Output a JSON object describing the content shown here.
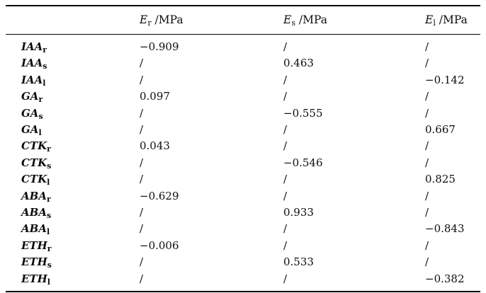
{
  "colors": {
    "background": "#ffffff",
    "text": "#0d0d0d",
    "rule": "#000000"
  },
  "table": {
    "header": {
      "row_label_col": "",
      "cols": [
        {
          "symbol": "E",
          "sub": "r",
          "unit": " /MPa"
        },
        {
          "symbol": "E",
          "sub": "s",
          "unit": " /MPa"
        },
        {
          "symbol": "E",
          "sub": "l",
          "unit": " /MPa"
        }
      ]
    },
    "empty_cell_marker": "/",
    "rows": [
      {
        "hormone": "IAA",
        "sub": "r",
        "er": "−0.909",
        "es": "/",
        "el": "/"
      },
      {
        "hormone": "IAA",
        "sub": "s",
        "er": "/",
        "es": "0.463",
        "el": "/"
      },
      {
        "hormone": "IAA",
        "sub": "l",
        "er": "/",
        "es": "/",
        "el": "−0.142"
      },
      {
        "hormone": "GA",
        "sub": "r",
        "er": "0.097",
        "es": "/",
        "el": "/"
      },
      {
        "hormone": "GA",
        "sub": "s",
        "er": "/",
        "es": "−0.555",
        "el": "/"
      },
      {
        "hormone": "GA",
        "sub": "l",
        "er": "/",
        "es": "/",
        "el": "0.667"
      },
      {
        "hormone": "CTK",
        "sub": "r",
        "er": "0.043",
        "es": "/",
        "el": "/"
      },
      {
        "hormone": "CTK",
        "sub": "s",
        "er": "/",
        "es": "−0.546",
        "el": "/"
      },
      {
        "hormone": "CTK",
        "sub": "l",
        "er": "/",
        "es": "/",
        "el": "0.825"
      },
      {
        "hormone": "ABA",
        "sub": "r",
        "er": "−0.629",
        "es": "/",
        "el": "/"
      },
      {
        "hormone": "ABA",
        "sub": "s",
        "er": "/",
        "es": "0.933",
        "el": "/"
      },
      {
        "hormone": "ABA",
        "sub": "l",
        "er": "/",
        "es": "/",
        "el": "−0.843"
      },
      {
        "hormone": "ETH",
        "sub": "r",
        "er": "−0.006",
        "es": "/",
        "el": "/"
      },
      {
        "hormone": "ETH",
        "sub": "s",
        "er": "/",
        "es": "0.533",
        "el": "/"
      },
      {
        "hormone": "ETH",
        "sub": "l",
        "er": "/",
        "es": "/",
        "el": "−0.382"
      }
    ]
  }
}
